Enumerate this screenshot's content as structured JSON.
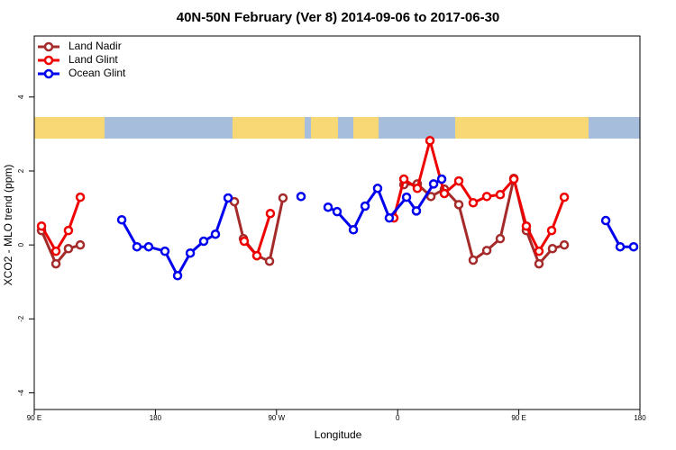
{
  "chart_data": {
    "type": "line",
    "title": "40N-50N February (Ver 8)   2014-09-06 to 2017-06-30",
    "x_label": "Longitude",
    "y_label": "XCO2 - MLO trend (ppm)",
    "xlim": [
      90,
      540
    ],
    "ylim": [
      -4.45,
      5.65
    ],
    "xticks": [
      {
        "value": 90,
        "label": "90 E"
      },
      180,
      {
        "value": 270,
        "label": "90 W"
      },
      {
        "value": 360,
        "label": "0"
      },
      {
        "value": 450,
        "label": "90 E"
      },
      {
        "value": 540,
        "label": "180"
      }
    ],
    "yticks": [
      -4,
      -2,
      0,
      2,
      4
    ],
    "legend": "top-left",
    "series": [
      {
        "name": "Land Nadir",
        "color": "#a52a2a",
        "x": [
          95.4,
          106.1,
          115.4,
          124.2,
          null,
          238.7,
          245.4,
          255.4,
          264.8,
          274.8,
          null,
          364.6,
          374.6,
          384.7,
          394.7,
          405.4,
          416.1,
          426.2,
          436.2,
          446.3,
          455.6,
          465.0,
          475.0,
          483.8
        ],
        "values": [
          0.39,
          -0.51,
          -0.1,
          0,
          null,
          1.17,
          0.17,
          -0.29,
          -0.44,
          1.27,
          null,
          1.63,
          1.65,
          1.31,
          1.51,
          1.09,
          -0.41,
          -0.15,
          0.17,
          1.8,
          0.39,
          -0.51,
          -0.1,
          0
        ]
      },
      {
        "name": "Land Glint",
        "color": "#ee0000",
        "x": [
          95.4,
          106.1,
          115.4,
          124.2,
          null,
          246.0,
          255.4,
          265.4,
          null,
          357.2,
          364.6,
          374.6,
          384.0,
          394.7,
          405.4,
          416.1,
          426.2,
          436.2,
          446.3,
          455.6,
          465.0,
          474.4,
          483.8
        ],
        "values": [
          0.51,
          -0.17,
          0.39,
          1.29,
          null,
          0.1,
          -0.29,
          0.85,
          null,
          0.73,
          1.78,
          1.53,
          2.82,
          1.39,
          1.73,
          1.14,
          1.31,
          1.36,
          1.78,
          0.51,
          -0.17,
          0.39,
          1.29
        ]
      },
      {
        "name": "Ocean Glint",
        "color": "#0000ee",
        "x": [
          155.0,
          166.3,
          175.0,
          187.1,
          196.5,
          205.9,
          215.9,
          224.6,
          234.0,
          null,
          288.2,
          null,
          308.3,
          315.0,
          327.1,
          335.8,
          345.1,
          353.8,
          366.6,
          373.9,
          386.7,
          392.7,
          null,
          514.6,
          525.3,
          535.3
        ],
        "values": [
          0.68,
          -0.05,
          -0.05,
          -0.17,
          -0.83,
          -0.22,
          0.1,
          0.29,
          1.27,
          null,
          1.31,
          null,
          1.02,
          0.9,
          0.41,
          1.05,
          1.53,
          0.73,
          1.29,
          0.92,
          1.65,
          1.78,
          null,
          0.66,
          -0.05,
          -0.05
        ]
      }
    ]
  }
}
